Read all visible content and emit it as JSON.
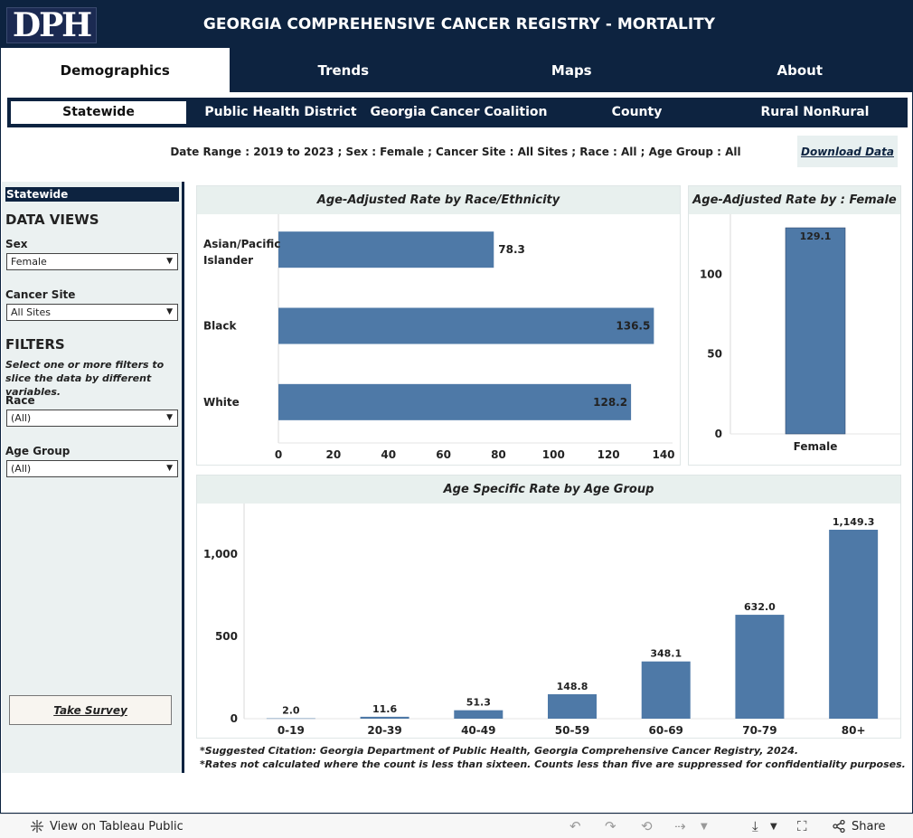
{
  "header": {
    "logo_text": "DPH",
    "title": "GEORGIA COMPREHENSIVE CANCER REGISTRY - MORTALITY"
  },
  "main_tabs": [
    {
      "label": "Demographics",
      "active": true
    },
    {
      "label": "Trends",
      "active": false
    },
    {
      "label": "Maps",
      "active": false
    },
    {
      "label": "About",
      "active": false
    }
  ],
  "sub_tabs": [
    {
      "label": "Statewide",
      "active": true
    },
    {
      "label": "Public Health District",
      "active": false
    },
    {
      "label": "Georgia Cancer Coalition",
      "active": false
    },
    {
      "label": "County",
      "active": false
    },
    {
      "label": "Rural NonRural",
      "active": false
    }
  ],
  "filter_summary": "Date Range : 2019 to 2023 ; Sex : Female ; Cancer Site : All Sites ; Race : All  ; Age Group : All",
  "download_label": "Download Data",
  "left_panel": {
    "title": "Statewide",
    "data_views_heading": "DATA VIEWS",
    "sex_label": "Sex",
    "sex_value": "Female",
    "cancer_site_label": "Cancer Site",
    "cancer_site_value": "All Sites",
    "filters_heading": "FILTERS",
    "filters_desc": "Select one or more filters to slice the data by different variables.",
    "race_label": "Race",
    "race_value": "(All)",
    "age_group_label": "Age Group",
    "age_group_value": "(All)",
    "survey_label": "Take Survey"
  },
  "chart_data": [
    {
      "type": "bar",
      "orientation": "horizontal",
      "title": "Age-Adjusted Rate by Race/Ethnicity",
      "categories": [
        "Asian/Pacific Islander",
        "Black",
        "White"
      ],
      "values": [
        78.3,
        136.5,
        128.2
      ],
      "labels": [
        "78.3",
        "136.5",
        "128.2"
      ],
      "xlim": [
        0,
        140
      ],
      "ticks": [
        0,
        20,
        40,
        60,
        80,
        100,
        120,
        140
      ],
      "tick_labels": [
        "0",
        "20",
        "40",
        "60",
        "80",
        "100",
        "120",
        "140"
      ],
      "color": "#4e79a7"
    },
    {
      "type": "bar",
      "title": "Age-Adjusted Rate by : Female",
      "categories": [
        "Female"
      ],
      "values": [
        129.1
      ],
      "labels": [
        "129.1"
      ],
      "ylim": [
        0,
        129.1
      ],
      "ticks": [
        0,
        50,
        100
      ],
      "tick_labels": [
        "0",
        "50",
        "100"
      ],
      "color": "#4e79a7"
    },
    {
      "type": "bar",
      "title": "Age Specific Rate by Age Group",
      "categories": [
        "0-19",
        "20-39",
        "40-49",
        "50-59",
        "60-69",
        "70-79",
        "80+"
      ],
      "values": [
        2.0,
        11.6,
        51.3,
        148.8,
        348.1,
        632.0,
        1149.3
      ],
      "labels": [
        "2.0",
        "11.6",
        "51.3",
        "148.8",
        "348.1",
        "632.0",
        "1,149.3"
      ],
      "ylim": [
        0,
        1149.3
      ],
      "ticks": [
        0,
        500,
        1000
      ],
      "tick_labels": [
        "0",
        "500",
        "1,000"
      ],
      "color": "#4e79a7"
    }
  ],
  "citation": {
    "line1": "*Suggested Citation: Georgia Department of Public Health, Georgia Comprehensive Cancer Registry, 2024.",
    "line2": "*Rates not calculated where the count is less than sixteen. Counts less than five are suppressed for confidentiality purposes."
  },
  "bottom_bar": {
    "view_label": "View on Tableau Public",
    "share_label": "Share"
  }
}
